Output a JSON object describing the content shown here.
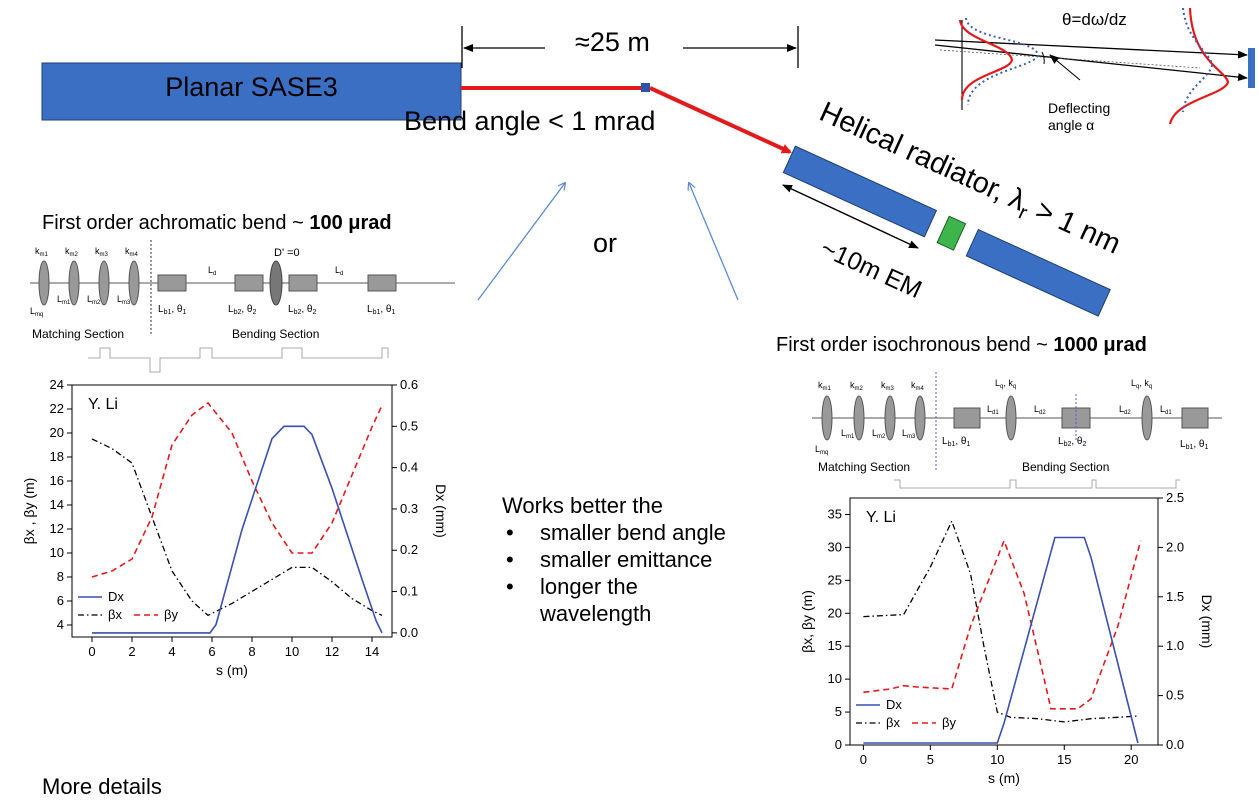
{
  "top": {
    "undulator_label": "Planar SASE3",
    "distance_label": "≈25 m",
    "bend_label": "Bend angle < 1 mrad",
    "helical_label": "Helical radiator, λ",
    "helical_sub": "r",
    "helical_tail": " > 1 nm",
    "em_label": "~10m  EM",
    "or_label": "or",
    "theta_label": "θ=dω/dz",
    "deflect_line1": "Deflecting",
    "deflect_line2": "angle α"
  },
  "achromatic": {
    "title_prefix": "First order achromatic bend ~ ",
    "title_bold": "100 μrad",
    "matching_label": "Matching Section",
    "bending_label": "Bending Section",
    "dprime_label": "D' =0"
  },
  "isochronous": {
    "title_prefix": "First order isochronous bend ~  ",
    "title_bold": "1000 μrad",
    "matching_label": "Matching Section",
    "bending_label": "Bending Section"
  },
  "notes": {
    "intro": "Works better the",
    "items": [
      "smaller bend angle",
      "smaller emittance",
      "longer the",
      "wavelength"
    ],
    "footer": "More details"
  },
  "colors": {
    "magnet_blue": "#3a6fc4",
    "beam_red": "#e31a1c",
    "green": "#3db54a",
    "dx_blue": "#3a4fb0"
  },
  "chart_data": [
    {
      "type": "line",
      "annotation": "Y. Li",
      "xlabel": "s (m)",
      "ylabel": "βx , βy  (m)",
      "y2label": "Dx (mm)",
      "xlim": [
        -1,
        15
      ],
      "ylim": [
        3,
        24
      ],
      "y2lim": [
        -0.01,
        0.6
      ],
      "xticks": [
        0,
        2,
        4,
        6,
        8,
        10,
        12,
        14
      ],
      "yticks": [
        4,
        6,
        8,
        10,
        12,
        14,
        16,
        18,
        20,
        22,
        24
      ],
      "y2ticks": [
        0.0,
        0.1,
        0.2,
        0.3,
        0.4,
        0.5,
        0.6
      ],
      "legend": "bottom-left",
      "series": [
        {
          "name": "βx",
          "axis": "left",
          "x": [
            0,
            1,
            2,
            3,
            4,
            5,
            5.8,
            7,
            8,
            9,
            10,
            11,
            12,
            13,
            14,
            14.5
          ],
          "values": [
            19.5,
            18.7,
            17.5,
            13.0,
            8.5,
            6.0,
            4.8,
            5.8,
            6.8,
            7.8,
            8.8,
            8.8,
            7.6,
            6.2,
            5.2,
            4.8
          ]
        },
        {
          "name": "βy",
          "axis": "left",
          "x": [
            0,
            1,
            2,
            3,
            4,
            5,
            5.8,
            7,
            8,
            9,
            10,
            11,
            12,
            13,
            14,
            14.5
          ],
          "values": [
            8.0,
            8.5,
            9.5,
            13.0,
            19.0,
            21.5,
            22.5,
            20.0,
            16.0,
            12.5,
            10.0,
            10.0,
            12.5,
            16.5,
            20.5,
            22.3
          ]
        },
        {
          "name": "Dx",
          "axis": "right",
          "x": [
            0,
            5.9,
            6.2,
            7.5,
            9.0,
            9.6,
            10.6,
            11.0,
            12.0,
            13.5,
            14.2,
            14.5
          ],
          "values": [
            0.0,
            0.0,
            0.02,
            0.25,
            0.47,
            0.5,
            0.5,
            0.48,
            0.35,
            0.13,
            0.03,
            0.0
          ]
        }
      ]
    },
    {
      "type": "line",
      "annotation": "Y. Li",
      "xlabel": "s (m)",
      "ylabel": "βx, βy (m)",
      "y2label": "Dx (mm)",
      "xlim": [
        -1,
        22
      ],
      "ylim": [
        0,
        37.5
      ],
      "y2lim": [
        0,
        2.5
      ],
      "xticks": [
        0,
        5,
        10,
        15,
        20
      ],
      "yticks": [
        0,
        5,
        10,
        15,
        20,
        25,
        30,
        35
      ],
      "y2ticks": [
        0.0,
        0.5,
        1.0,
        1.5,
        2.0,
        2.5
      ],
      "legend": "bottom-left",
      "series": [
        {
          "name": "βx",
          "axis": "left",
          "x": [
            0,
            3,
            5,
            6.6,
            8,
            9,
            10,
            11,
            13,
            15,
            17,
            19,
            20.5
          ],
          "values": [
            19.5,
            19.8,
            27.0,
            34.0,
            26.0,
            15.0,
            5.0,
            4.2,
            4.0,
            3.5,
            4.0,
            4.2,
            4.4
          ]
        },
        {
          "name": "βy",
          "axis": "left",
          "x": [
            0,
            2,
            3,
            4,
            6.6,
            8,
            10.5,
            12,
            13.5,
            14,
            16,
            17,
            19,
            20.7
          ],
          "values": [
            8.0,
            8.5,
            9.0,
            8.8,
            8.5,
            18.0,
            31.0,
            23.0,
            10.0,
            5.5,
            5.5,
            7.0,
            18.0,
            31.0
          ]
        },
        {
          "name": "Dx",
          "axis": "right",
          "x": [
            0,
            10,
            10.5,
            14.3,
            16.5,
            17.0,
            20.5
          ],
          "values": [
            0.02,
            0.02,
            0.22,
            2.1,
            2.1,
            1.9,
            0.02
          ]
        }
      ]
    }
  ]
}
